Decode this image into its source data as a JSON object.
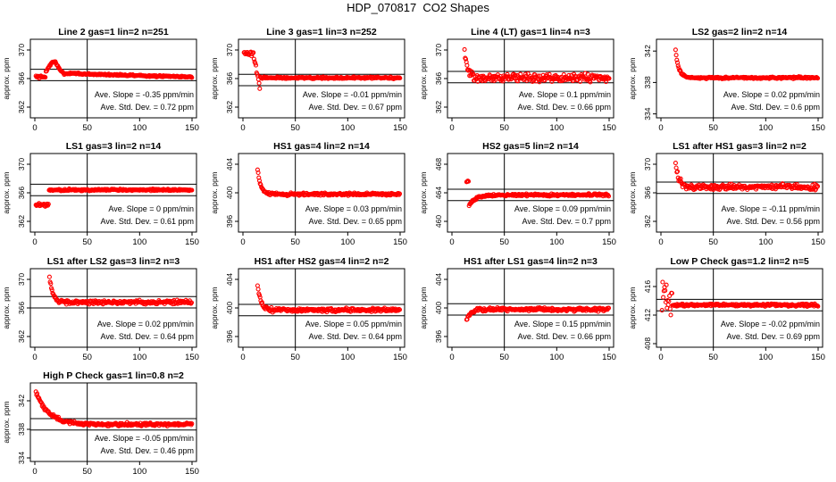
{
  "title": "HDP_070817  CO2 Shapes",
  "colors": {
    "points": "#ff0000",
    "axis": "#000000",
    "background": "#ffffff"
  },
  "chart_data": [
    {
      "type": "scatter",
      "title": "Line 2 gas=1 lin=2 n=251",
      "ylabel": "approx. ppm",
      "xlim": [
        0,
        150
      ],
      "ylim": [
        360.5,
        371.5
      ],
      "xticks": [
        0,
        50,
        100,
        150
      ],
      "yticks": [
        362,
        366,
        370
      ],
      "ref_lines": [
        365.7,
        367.3
      ],
      "vline": 50,
      "start": 1,
      "shape": "bump",
      "level": 366.1,
      "scatter": 0.15,
      "ann_slope": "Ave. Slope = -0.35 ppm/min",
      "ann_sd": "Ave. Std. Dev. =  0.72 ppm"
    },
    {
      "type": "scatter",
      "title": "Line 3 gas=1 lin=3 n=252",
      "ylabel": "approx. ppm",
      "xlim": [
        0,
        150
      ],
      "ylim": [
        360.5,
        371.5
      ],
      "xticks": [
        0,
        50,
        100,
        150
      ],
      "yticks": [
        362,
        366,
        370
      ],
      "ref_lines": [
        365.0,
        366.6
      ],
      "vline": 50,
      "start": 1,
      "shape": "dip",
      "level": 366.1,
      "scatter": 0.12,
      "ann_slope": "Ave. Slope = -0.01  ppm/min",
      "ann_sd": "Ave. Std. Dev. =  0.67 ppm"
    },
    {
      "type": "scatter",
      "title": "Line 4 (LT) gas=1 lin=4 n=3",
      "ylabel": "approx. ppm",
      "xlim": [
        0,
        150
      ],
      "ylim": [
        360.5,
        371.5
      ],
      "xticks": [
        0,
        50,
        100,
        150
      ],
      "yticks": [
        362,
        366,
        370
      ],
      "ref_lines": [
        365.4,
        367.0
      ],
      "vline": 50,
      "start": 12,
      "shape": "spike",
      "level": 366.1,
      "scatter": 0.5,
      "ann_slope": "Ave. Slope =  0.1  ppm/min",
      "ann_sd": "Ave. Std. Dev. =  0.66 ppm"
    },
    {
      "type": "scatter",
      "title": "LS2 gas=2 lin=2 n=14",
      "ylabel": "approx. ppm",
      "xlim": [
        0,
        150
      ],
      "ylim": [
        333.5,
        343.5
      ],
      "xticks": [
        0,
        50,
        100,
        150
      ],
      "yticks": [
        334,
        338,
        342
      ],
      "ref_lines": [],
      "vline": 50,
      "start": 14,
      "shape": "spike",
      "level": 338.6,
      "scatter": 0.12,
      "ann_slope": "Ave. Slope =  0.02  ppm/min",
      "ann_sd": "Ave. Std. Dev. =  0.6  ppm"
    },
    {
      "type": "scatter",
      "title": "LS1 gas=3 lin=2 n=14",
      "ylabel": "approx. ppm",
      "xlim": [
        0,
        150
      ],
      "ylim": [
        360.5,
        371.5
      ],
      "xticks": [
        0,
        50,
        100,
        150
      ],
      "yticks": [
        362,
        366,
        370
      ],
      "ref_lines": [
        365.6,
        367.2
      ],
      "vline": 50,
      "start": 1,
      "shape": "step",
      "level": 366.4,
      "scatter": 0.12,
      "ann_slope": "Ave. Slope =  0  ppm/min",
      "ann_sd": "Ave. Std. Dev. =  0.61 ppm"
    },
    {
      "type": "scatter",
      "title": "HS1 gas=4 lin=2 n=14",
      "ylabel": "approx. ppm",
      "xlim": [
        0,
        150
      ],
      "ylim": [
        394.5,
        405.5
      ],
      "xticks": [
        0,
        50,
        100,
        150
      ],
      "yticks": [
        396,
        400,
        404
      ],
      "ref_lines": [],
      "vline": 50,
      "start": 14,
      "shape": "spike",
      "level": 399.8,
      "scatter": 0.18,
      "ann_slope": "Ave. Slope =  0.03  ppm/min",
      "ann_sd": "Ave. Std. Dev. =  0.65 ppm"
    },
    {
      "type": "scatter",
      "title": "HS2 gas=5 lin=2 n=14",
      "ylabel": "approx. ppm",
      "xlim": [
        0,
        150
      ],
      "ylim": [
        458.5,
        469.5
      ],
      "xticks": [
        0,
        50,
        100,
        150
      ],
      "yticks": [
        460,
        464,
        468
      ],
      "ref_lines": [
        462.9,
        464.5
      ],
      "vline": 50,
      "start": 14,
      "shape": "rise",
      "level": 463.7,
      "scatter": 0.15,
      "ann_slope": "Ave. Slope =  0.09  ppm/min",
      "ann_sd": "Ave. Std. Dev. =  0.7  ppm"
    },
    {
      "type": "scatter",
      "title": "LS1 after HS1 gas=3 lin=2 n=2",
      "ylabel": "approx. ppm",
      "xlim": [
        0,
        150
      ],
      "ylim": [
        360.5,
        371.5
      ],
      "xticks": [
        0,
        50,
        100,
        150
      ],
      "yticks": [
        362,
        366,
        370
      ],
      "ref_lines": [
        365.9,
        367.5
      ],
      "vline": 50,
      "start": 14,
      "shape": "spike",
      "level": 366.8,
      "scatter": 0.35,
      "ann_slope": "Ave. Slope = -0.11  ppm/min",
      "ann_sd": "Ave. Std. Dev. =  0.56 ppm"
    },
    {
      "type": "scatter",
      "title": "LS1 after LS2 gas=3 lin=2 n=3",
      "ylabel": "approx. ppm",
      "xlim": [
        0,
        150
      ],
      "ylim": [
        360.5,
        371.5
      ],
      "xticks": [
        0,
        50,
        100,
        150
      ],
      "yticks": [
        362,
        366,
        370
      ],
      "ref_lines": [
        366.0,
        367.6
      ],
      "vline": 50,
      "start": 14,
      "shape": "spike",
      "level": 366.8,
      "scatter": 0.25,
      "ann_slope": "Ave. Slope =  0.02  ppm/min",
      "ann_sd": "Ave. Std. Dev. =  0.64 ppm"
    },
    {
      "type": "scatter",
      "title": "HS1 after HS2 gas=4 lin=2 n=2",
      "ylabel": "approx. ppm",
      "xlim": [
        0,
        150
      ],
      "ylim": [
        394.5,
        405.5
      ],
      "xticks": [
        0,
        50,
        100,
        150
      ],
      "yticks": [
        396,
        400,
        404
      ],
      "ref_lines": [
        398.9,
        400.5
      ],
      "vline": 50,
      "start": 14,
      "shape": "spike",
      "level": 399.7,
      "scatter": 0.25,
      "ann_slope": "Ave. Slope =  0.05  ppm/min",
      "ann_sd": "Ave. Std. Dev. =  0.64 ppm"
    },
    {
      "type": "scatter",
      "title": "HS1 after LS1 gas=4 lin=2 n=3",
      "ylabel": "approx. ppm",
      "xlim": [
        0,
        150
      ],
      "ylim": [
        394.5,
        405.5
      ],
      "xticks": [
        0,
        50,
        100,
        150
      ],
      "yticks": [
        396,
        400,
        404
      ],
      "ref_lines": [
        399.0,
        400.6
      ],
      "vline": 50,
      "start": 14,
      "shape": "low",
      "level": 399.8,
      "scatter": 0.25,
      "ann_slope": "Ave. Slope =  0.15  ppm/min",
      "ann_sd": "Ave. Std. Dev. =  0.66 ppm"
    },
    {
      "type": "scatter",
      "title": "Low P Check gas=1.2 lin=2 n=5",
      "ylabel": "approx. ppm",
      "xlim": [
        0,
        150
      ],
      "ylim": [
        407.5,
        418.5
      ],
      "xticks": [
        0,
        50,
        100,
        150
      ],
      "yticks": [
        408,
        412,
        416
      ],
      "ref_lines": [
        412.6,
        414.2
      ],
      "vline": 50,
      "start": 1,
      "shape": "scatterstart",
      "level": 413.4,
      "scatter": 0.18,
      "ann_slope": "Ave. Slope = -0.02  ppm/min",
      "ann_sd": "Ave. Std. Dev. =  0.69 ppm"
    },
    {
      "type": "scatter",
      "title": "High P Check gas=1 lin=0.8 n=2",
      "ylabel": "approx. ppm",
      "xlim": [
        0,
        150
      ],
      "ylim": [
        333.5,
        344.5
      ],
      "xticks": [
        0,
        50,
        100,
        150
      ],
      "yticks": [
        334,
        338,
        342
      ],
      "ref_lines": [
        337.9,
        339.5
      ],
      "vline": 50,
      "start": 1,
      "shape": "decay",
      "level": 338.7,
      "scatter": 0.22,
      "ann_slope": "Ave. Slope = -0.05  ppm/min",
      "ann_sd": "Ave. Std. Dev. =  0.46 ppm"
    }
  ]
}
